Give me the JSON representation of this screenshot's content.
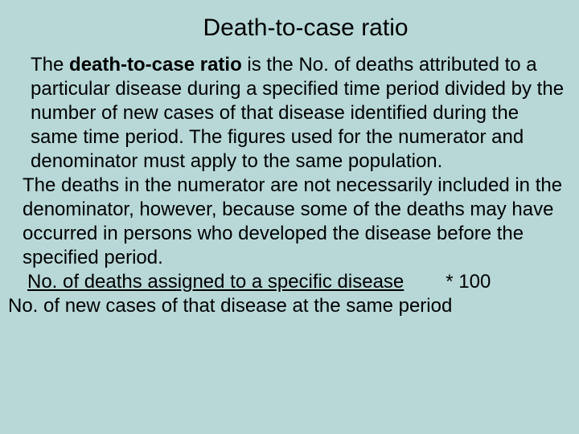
{
  "slide": {
    "background_color": "#b8d8d8",
    "title": "Death-to-case ratio",
    "title_fontsize": 30,
    "body_fontsize": 24,
    "text_color": "#000000",
    "paragraph1": {
      "lead": "The ",
      "bold_term": "death-to-case ratio",
      "rest": " is the No. of deaths attributed to a particular disease during a specified time period divided by the number of new cases of that disease identified during the same time period. The figures used for the numerator and denominator must apply to the same population."
    },
    "paragraph2": "The deaths in the numerator are not necessarily included in the denominator, however, because some of the deaths may have occurred in persons who developed the disease before the specified period.",
    "formula": {
      "numerator": "No. of deaths assigned to a specific disease",
      "multiplier": "* 100",
      "denominator": "No. of new cases of that disease at the same period"
    }
  }
}
